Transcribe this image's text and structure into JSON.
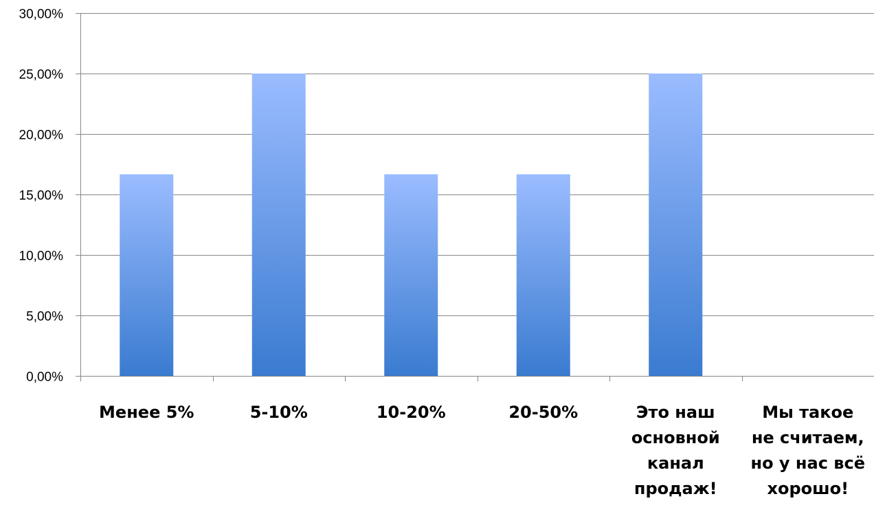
{
  "chart_data": {
    "type": "bar",
    "title": "",
    "xlabel": "",
    "ylabel": "",
    "categories": [
      [
        "Менее 5%"
      ],
      [
        "5-10%"
      ],
      [
        "10-20%"
      ],
      [
        "20-50%"
      ],
      [
        "Это наш",
        "основной",
        "канал",
        "продаж!"
      ],
      [
        "Мы такое",
        "не считаем,",
        "но у нас всё",
        "хорошо!"
      ]
    ],
    "values": [
      16.67,
      25.0,
      16.67,
      16.67,
      25.0,
      0
    ],
    "ylim": [
      0,
      30
    ],
    "yticks": [
      0,
      5,
      10,
      15,
      20,
      25,
      30
    ],
    "ytick_labels": [
      "0,00%",
      "5,00%",
      "10,00%",
      "15,00%",
      "20,00%",
      "25,00%",
      "30,00%"
    ],
    "grid": true,
    "legend": "none",
    "colors": {
      "bar_top": "#9bbcff",
      "bar_bottom": "#3a7bd0",
      "grid": "#868686",
      "axis": "#868686"
    }
  }
}
